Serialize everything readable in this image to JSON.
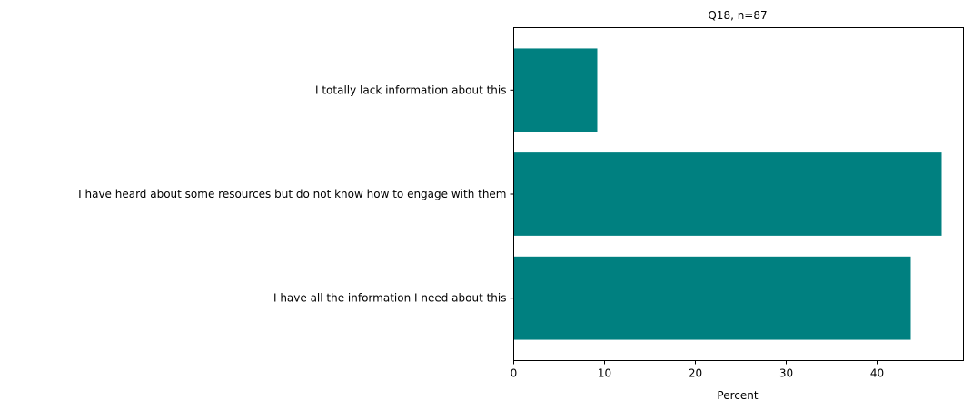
{
  "chart_data": {
    "type": "bar",
    "orientation": "horizontal",
    "title": "Q18, n=87",
    "xlabel": "Percent",
    "ylabel": "",
    "categories": [
      "I have all the information I need about this",
      "I have heard about some resources but do not know how to engage with them",
      "I totally lack information about this"
    ],
    "values": [
      43.7,
      47.1,
      9.2
    ],
    "xlim": [
      0,
      49.5
    ],
    "xticks": [
      0,
      10,
      20,
      30,
      40
    ],
    "bar_color": "#008080",
    "grid": false,
    "legend": "none"
  }
}
